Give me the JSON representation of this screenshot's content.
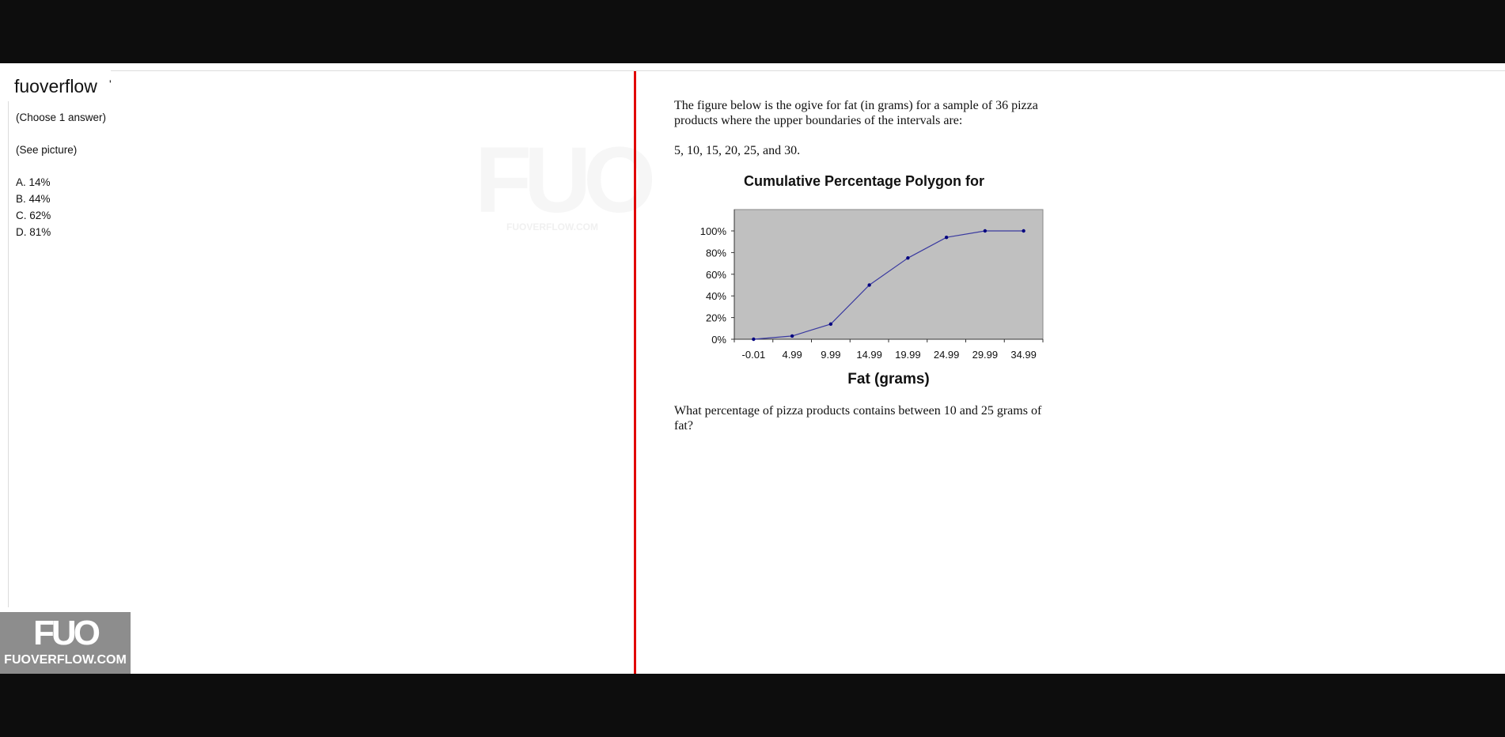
{
  "site": {
    "name": "fuoverflow",
    "tick": "'",
    "watermark_mark": "FUO",
    "watermark_url": "FUOVERFLOW.COM",
    "badge_mark": "FUO",
    "badge_url": "FUOVERFLOW.COM",
    "divider_color": "#e10600"
  },
  "question": {
    "instruction": "(Choose 1 answer)",
    "note": "(See picture)",
    "answers": [
      "A. 14%",
      "B. 44%",
      "C. 62%",
      "D. 81%"
    ]
  },
  "document": {
    "intro": "The figure below is the ogive for fat (in grams) for a sample of 36 pizza products where the upper boundaries of the intervals are:",
    "boundaries": "5, 10, 15, 20, 25, and 30.",
    "question": "What percentage of pizza products contains between 10 and 25 grams of fat?"
  },
  "chart_data": {
    "type": "line",
    "title": "Cumulative Percentage Polygon for",
    "xlabel": "Fat (grams)",
    "ylabel": "",
    "categories": [
      "-0.01",
      "4.99",
      "9.99",
      "14.99",
      "19.99",
      "24.99",
      "29.99",
      "34.99"
    ],
    "values": [
      0,
      3,
      14,
      50,
      75,
      94,
      100,
      100
    ],
    "ylim": [
      0,
      100
    ],
    "yticks": [
      "0%",
      "20%",
      "40%",
      "60%",
      "80%",
      "100%"
    ],
    "grid": false,
    "plot_background": "#c0c0c0",
    "line_color": "#3a3aa0",
    "marker_color": "#000080"
  }
}
